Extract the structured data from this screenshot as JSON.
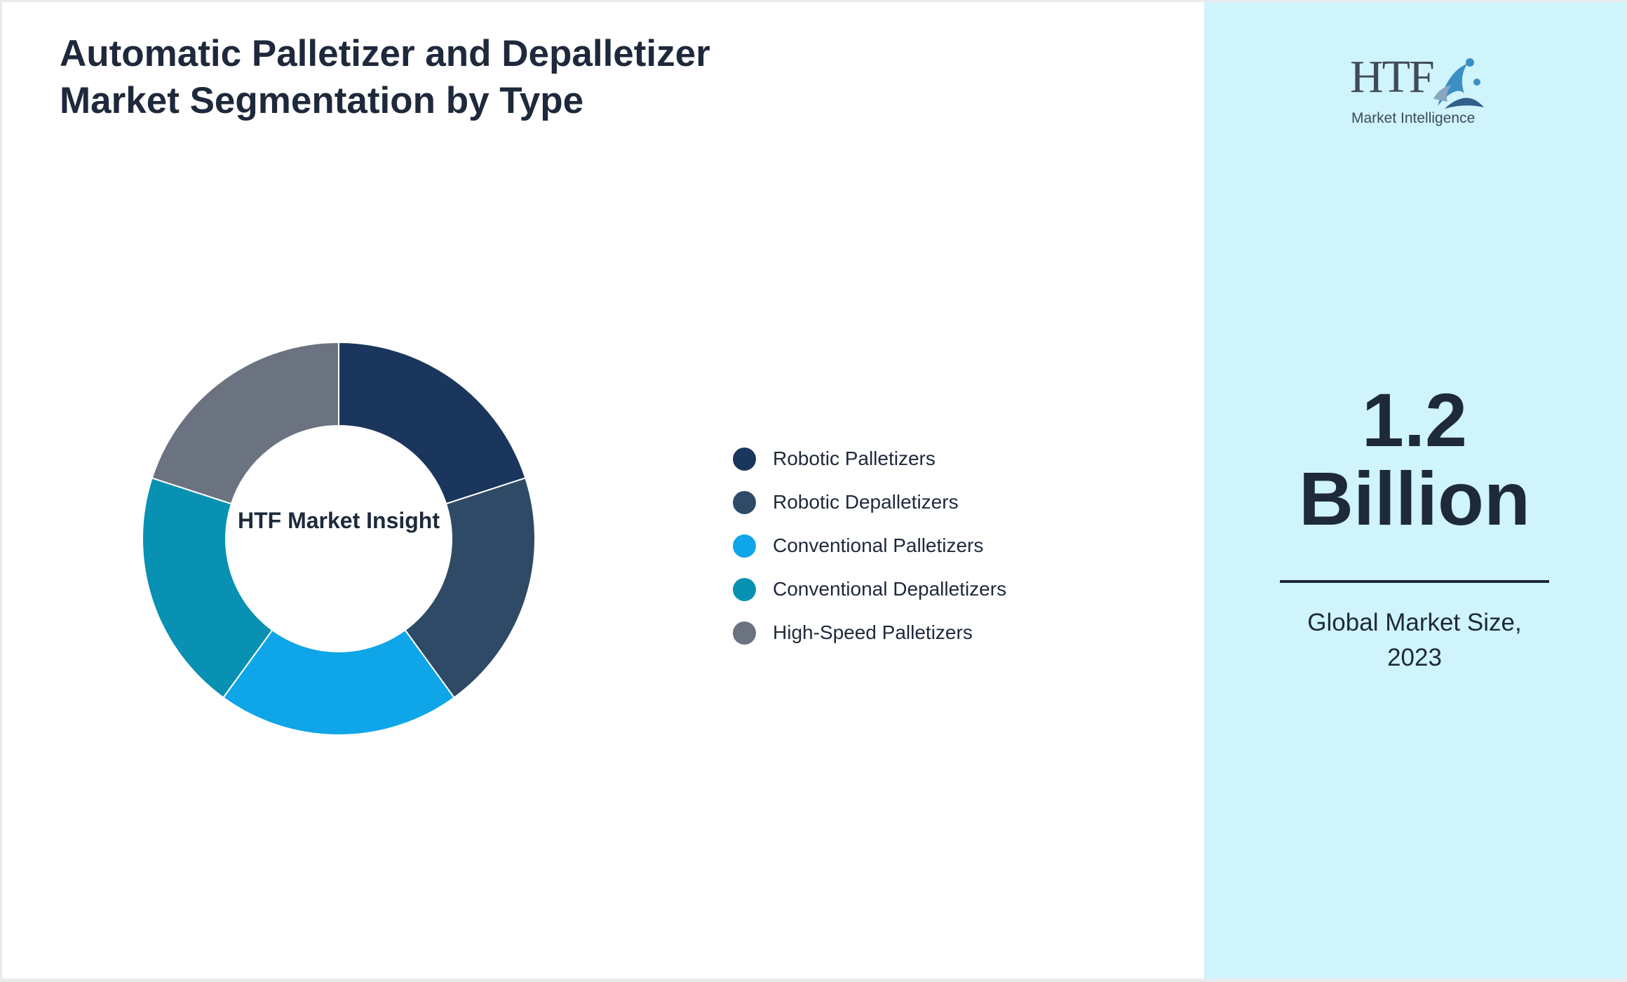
{
  "chart_data": {
    "type": "pie",
    "title": "Automatic Palletizer and Depalletizer Market Segmentation by Type",
    "center_label": "HTF Market Insight",
    "categories": [
      "Robotic Palletizers",
      "Robotic Depalletizers",
      "Conventional Palletizers",
      "Conventional Depalletizers",
      "High-Speed Palletizers"
    ],
    "values": [
      20,
      20,
      20,
      20,
      20
    ],
    "colors": [
      "#1b365d",
      "#2e4a66",
      "#0ea5e9",
      "#0891b2",
      "#6b7280"
    ],
    "donut": true,
    "legend_position": "right"
  },
  "sidebar": {
    "logo": {
      "name": "HTF",
      "tagline": "Market Intelligence"
    },
    "market_size_value": "1.2",
    "market_size_unit": "Billion",
    "caption_line1": "Global Market Size,",
    "caption_line2": "2023",
    "background_color": "#cff4fc"
  }
}
